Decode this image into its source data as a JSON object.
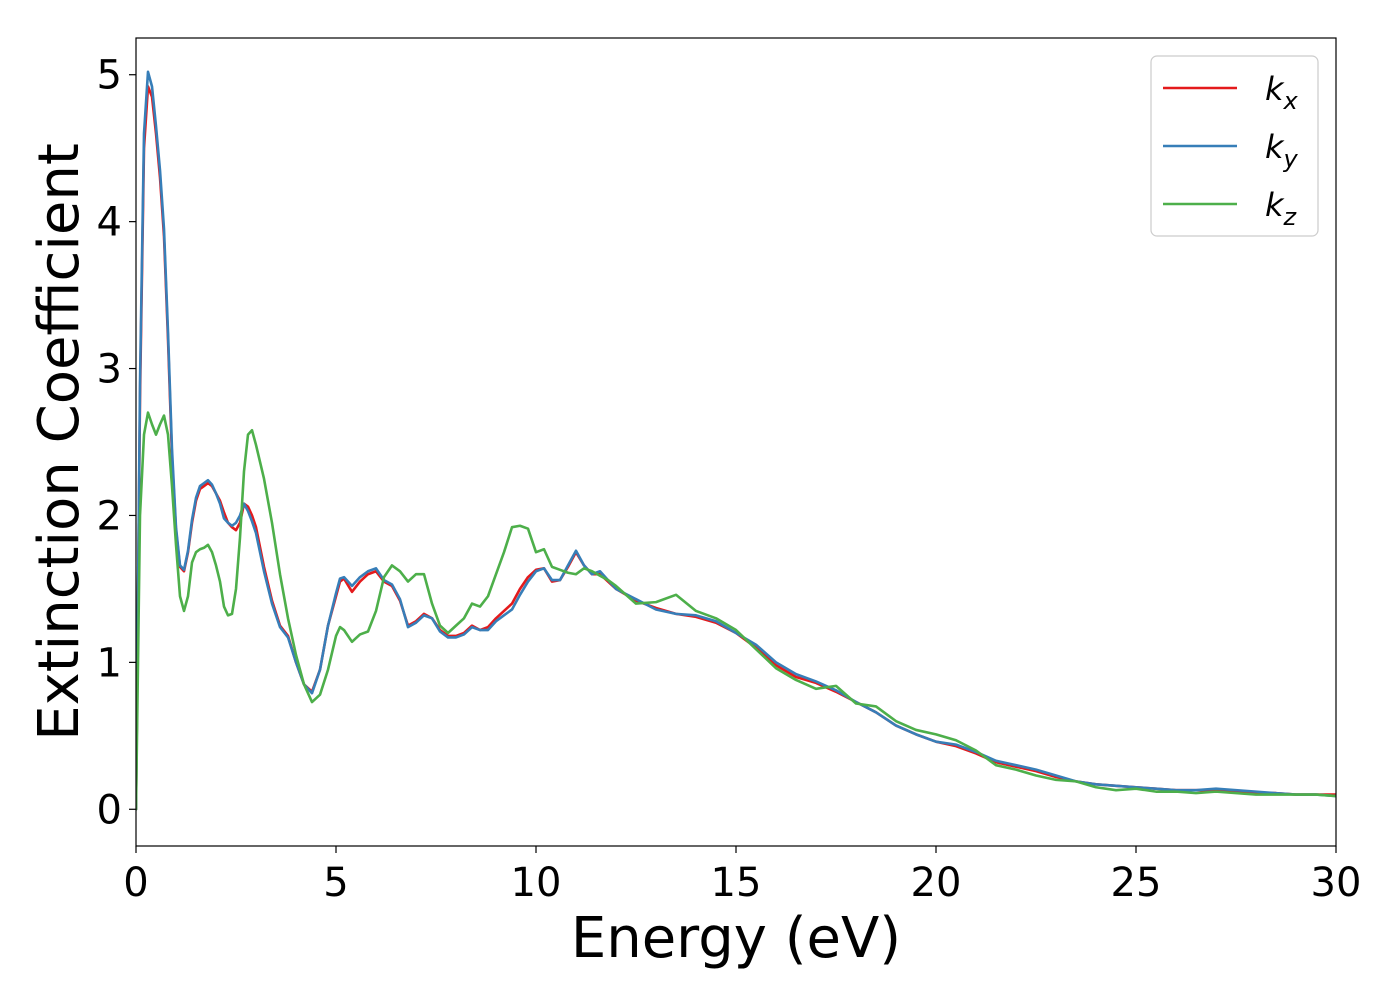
{
  "chart_data": {
    "type": "line",
    "title": "",
    "xlabel": "Energy (eV)",
    "ylabel": "Extinction Coefficient",
    "xlim": [
      0,
      30
    ],
    "ylim": [
      -0.25,
      5.25
    ],
    "xticks": [
      0,
      5,
      10,
      15,
      20,
      25,
      30
    ],
    "yticks": [
      0,
      1,
      2,
      3,
      4,
      5
    ],
    "grid": false,
    "legend_position": "top-right",
    "series": [
      {
        "name": "kx",
        "name_base": "k",
        "name_sub": "x",
        "color": "#e41a1c",
        "x": [
          0,
          0.1,
          0.2,
          0.3,
          0.4,
          0.5,
          0.6,
          0.7,
          0.8,
          0.9,
          1.0,
          1.1,
          1.2,
          1.3,
          1.4,
          1.5,
          1.6,
          1.7,
          1.8,
          1.9,
          2.0,
          2.1,
          2.2,
          2.3,
          2.4,
          2.5,
          2.6,
          2.7,
          2.8,
          2.9,
          3.0,
          3.2,
          3.4,
          3.6,
          3.8,
          4.0,
          4.2,
          4.4,
          4.6,
          4.8,
          5.0,
          5.1,
          5.2,
          5.4,
          5.6,
          5.8,
          6.0,
          6.2,
          6.4,
          6.6,
          6.8,
          7.0,
          7.2,
          7.4,
          7.6,
          7.8,
          8.0,
          8.2,
          8.4,
          8.6,
          8.8,
          9.0,
          9.2,
          9.4,
          9.6,
          9.8,
          10.0,
          10.2,
          10.4,
          10.6,
          10.8,
          11.0,
          11.2,
          11.4,
          11.6,
          11.8,
          12.0,
          12.5,
          13.0,
          13.5,
          14.0,
          14.5,
          15.0,
          15.5,
          16.0,
          16.5,
          17.0,
          17.5,
          18.0,
          18.5,
          19.0,
          19.5,
          20.0,
          20.5,
          21.0,
          21.5,
          22.0,
          22.5,
          23.0,
          23.5,
          24.0,
          24.5,
          25.0,
          25.5,
          26.0,
          26.5,
          27.0,
          27.5,
          28.0,
          28.5,
          29.0,
          29.5,
          30.0
        ],
        "y": [
          0,
          2.8,
          4.5,
          4.92,
          4.85,
          4.6,
          4.3,
          3.9,
          3.2,
          2.4,
          1.9,
          1.65,
          1.62,
          1.75,
          1.95,
          2.1,
          2.18,
          2.2,
          2.22,
          2.2,
          2.15,
          2.1,
          2.02,
          1.95,
          1.92,
          1.9,
          1.95,
          2.08,
          2.06,
          2.0,
          1.92,
          1.65,
          1.42,
          1.25,
          1.18,
          1.0,
          0.85,
          0.8,
          0.95,
          1.25,
          1.45,
          1.55,
          1.57,
          1.48,
          1.55,
          1.6,
          1.62,
          1.55,
          1.52,
          1.42,
          1.25,
          1.28,
          1.33,
          1.3,
          1.22,
          1.18,
          1.18,
          1.2,
          1.25,
          1.22,
          1.24,
          1.3,
          1.35,
          1.4,
          1.5,
          1.58,
          1.63,
          1.64,
          1.55,
          1.56,
          1.65,
          1.75,
          1.66,
          1.6,
          1.6,
          1.55,
          1.5,
          1.42,
          1.37,
          1.33,
          1.31,
          1.27,
          1.2,
          1.1,
          0.98,
          0.9,
          0.86,
          0.8,
          0.73,
          0.66,
          0.57,
          0.51,
          0.46,
          0.43,
          0.38,
          0.32,
          0.29,
          0.26,
          0.22,
          0.19,
          0.17,
          0.16,
          0.15,
          0.14,
          0.13,
          0.13,
          0.13,
          0.12,
          0.11,
          0.11,
          0.1,
          0.1,
          0.1
        ]
      },
      {
        "name": "ky",
        "name_base": "k",
        "name_sub": "y",
        "color": "#377eb8",
        "x": [
          0,
          0.1,
          0.2,
          0.3,
          0.4,
          0.5,
          0.6,
          0.7,
          0.8,
          0.9,
          1.0,
          1.1,
          1.2,
          1.3,
          1.4,
          1.5,
          1.6,
          1.7,
          1.8,
          1.9,
          2.0,
          2.1,
          2.2,
          2.3,
          2.4,
          2.5,
          2.6,
          2.7,
          2.8,
          2.9,
          3.0,
          3.2,
          3.4,
          3.6,
          3.8,
          4.0,
          4.2,
          4.4,
          4.6,
          4.8,
          5.0,
          5.1,
          5.2,
          5.4,
          5.6,
          5.8,
          6.0,
          6.2,
          6.4,
          6.6,
          6.8,
          7.0,
          7.2,
          7.4,
          7.6,
          7.8,
          8.0,
          8.2,
          8.4,
          8.6,
          8.8,
          9.0,
          9.2,
          9.4,
          9.6,
          9.8,
          10.0,
          10.2,
          10.4,
          10.6,
          10.8,
          11.0,
          11.2,
          11.4,
          11.6,
          11.8,
          12.0,
          12.5,
          13.0,
          13.5,
          14.0,
          14.5,
          15.0,
          15.5,
          16.0,
          16.5,
          17.0,
          17.5,
          18.0,
          18.5,
          19.0,
          19.5,
          20.0,
          20.5,
          21.0,
          21.5,
          22.0,
          22.5,
          23.0,
          23.5,
          24.0,
          24.5,
          25.0,
          25.5,
          26.0,
          26.5,
          27.0,
          27.5,
          28.0,
          28.5,
          29.0,
          29.5,
          30.0
        ],
        "y": [
          0,
          2.9,
          4.6,
          5.02,
          4.92,
          4.65,
          4.35,
          3.95,
          3.25,
          2.45,
          1.92,
          1.66,
          1.63,
          1.76,
          1.97,
          2.12,
          2.2,
          2.22,
          2.24,
          2.21,
          2.15,
          2.08,
          1.98,
          1.95,
          1.93,
          1.95,
          2.0,
          2.08,
          2.03,
          1.96,
          1.88,
          1.62,
          1.4,
          1.24,
          1.17,
          1.0,
          0.85,
          0.79,
          0.95,
          1.25,
          1.47,
          1.57,
          1.58,
          1.52,
          1.58,
          1.62,
          1.64,
          1.56,
          1.53,
          1.43,
          1.24,
          1.27,
          1.32,
          1.3,
          1.21,
          1.17,
          1.17,
          1.19,
          1.24,
          1.22,
          1.22,
          1.28,
          1.32,
          1.36,
          1.46,
          1.55,
          1.62,
          1.64,
          1.56,
          1.56,
          1.66,
          1.76,
          1.66,
          1.6,
          1.62,
          1.56,
          1.5,
          1.43,
          1.36,
          1.33,
          1.32,
          1.28,
          1.2,
          1.12,
          1.0,
          0.92,
          0.87,
          0.81,
          0.73,
          0.66,
          0.57,
          0.51,
          0.46,
          0.44,
          0.39,
          0.33,
          0.3,
          0.27,
          0.23,
          0.19,
          0.17,
          0.16,
          0.15,
          0.14,
          0.13,
          0.13,
          0.14,
          0.13,
          0.12,
          0.11,
          0.1,
          0.1,
          0.09
        ]
      },
      {
        "name": "kz",
        "name_base": "k",
        "name_sub": "z",
        "color": "#4daf4a",
        "x": [
          0,
          0.1,
          0.2,
          0.3,
          0.4,
          0.5,
          0.6,
          0.7,
          0.8,
          0.9,
          1.0,
          1.1,
          1.2,
          1.3,
          1.4,
          1.5,
          1.6,
          1.7,
          1.8,
          1.9,
          2.0,
          2.1,
          2.2,
          2.3,
          2.4,
          2.5,
          2.6,
          2.7,
          2.8,
          2.9,
          3.0,
          3.2,
          3.4,
          3.6,
          3.8,
          4.0,
          4.2,
          4.4,
          4.6,
          4.8,
          5.0,
          5.1,
          5.2,
          5.4,
          5.6,
          5.8,
          6.0,
          6.2,
          6.4,
          6.6,
          6.8,
          7.0,
          7.2,
          7.4,
          7.6,
          7.8,
          8.0,
          8.2,
          8.4,
          8.6,
          8.8,
          9.0,
          9.2,
          9.4,
          9.6,
          9.8,
          10.0,
          10.2,
          10.4,
          10.6,
          10.8,
          11.0,
          11.2,
          11.4,
          11.6,
          11.8,
          12.0,
          12.5,
          13.0,
          13.5,
          14.0,
          14.5,
          15.0,
          15.5,
          16.0,
          16.5,
          17.0,
          17.5,
          18.0,
          18.5,
          19.0,
          19.5,
          20.0,
          20.5,
          21.0,
          21.5,
          22.0,
          22.5,
          23.0,
          23.5,
          24.0,
          24.5,
          25.0,
          25.5,
          26.0,
          26.5,
          27.0,
          27.5,
          28.0,
          28.5,
          29.0,
          29.5,
          30.0
        ],
        "y": [
          0,
          2.0,
          2.55,
          2.7,
          2.62,
          2.55,
          2.62,
          2.68,
          2.55,
          2.2,
          1.8,
          1.45,
          1.35,
          1.45,
          1.68,
          1.75,
          1.77,
          1.78,
          1.8,
          1.75,
          1.66,
          1.55,
          1.38,
          1.32,
          1.33,
          1.5,
          1.85,
          2.3,
          2.55,
          2.58,
          2.48,
          2.25,
          1.95,
          1.6,
          1.3,
          1.05,
          0.85,
          0.73,
          0.78,
          0.95,
          1.18,
          1.24,
          1.22,
          1.14,
          1.19,
          1.21,
          1.35,
          1.58,
          1.66,
          1.62,
          1.55,
          1.6,
          1.6,
          1.4,
          1.25,
          1.2,
          1.25,
          1.3,
          1.4,
          1.38,
          1.45,
          1.6,
          1.75,
          1.92,
          1.93,
          1.91,
          1.75,
          1.77,
          1.65,
          1.63,
          1.61,
          1.6,
          1.64,
          1.62,
          1.59,
          1.56,
          1.52,
          1.4,
          1.41,
          1.46,
          1.35,
          1.3,
          1.22,
          1.09,
          0.96,
          0.88,
          0.82,
          0.84,
          0.72,
          0.7,
          0.6,
          0.54,
          0.51,
          0.47,
          0.4,
          0.3,
          0.27,
          0.23,
          0.2,
          0.19,
          0.15,
          0.13,
          0.14,
          0.12,
          0.12,
          0.11,
          0.12,
          0.11,
          0.1,
          0.1,
          0.1,
          0.1,
          0.09
        ]
      }
    ]
  }
}
